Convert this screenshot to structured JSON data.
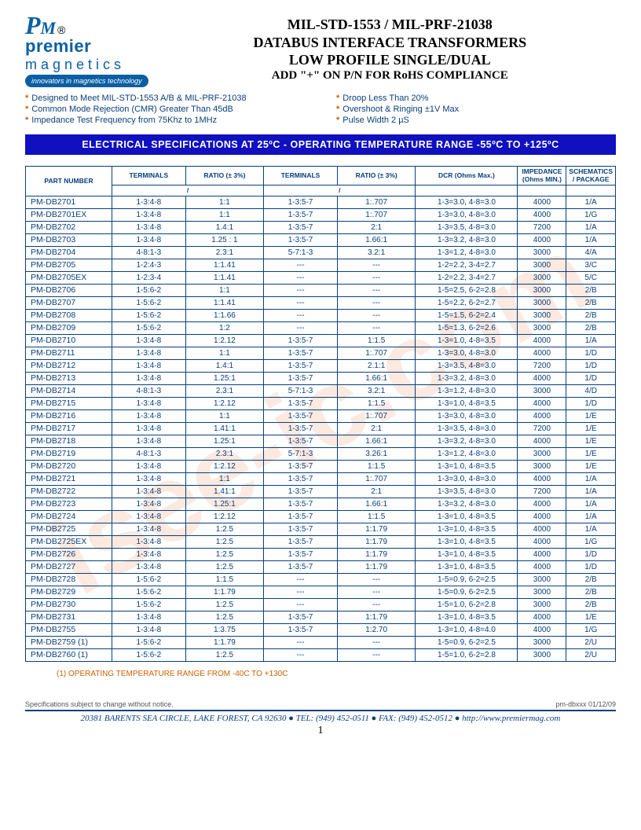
{
  "logo": {
    "premier": "premier",
    "magnetics": "magnetics",
    "tagline": "innovators in magnetics technology",
    "reg": "®"
  },
  "title": {
    "t1": "MIL-STD-1553 / MIL-PRF-21038",
    "t2": "DATABUS INTERFACE TRANSFORMERS",
    "t3": "LOW PROFILE SINGLE/DUAL",
    "t4": "ADD \"+\" ON P/N FOR RoHS COMPLIANCE"
  },
  "bullets_left": [
    "Designed to Meet MIL-STD-1553 A/B & MIL-PRF-21038",
    "Common Mode Rejection (CMR) Greater Than 45dB",
    "Impedance Test Frequency from 75Khz to 1MHz"
  ],
  "bullets_right": [
    "Droop Less Than 20%",
    "Overshoot & Ringing  ±1V Max",
    "Pulse Width 2 µS"
  ],
  "banner": "ELECTRICAL  SPECIFICATIONS  AT  25ºC  -  OPERATING  TEMPERATURE  RANGE   -55ºC  TO  +125ºC",
  "headers": {
    "pn": "PART NUMBER",
    "term": "TERMINALS",
    "ratio": "RATIO (± 3%)",
    "dcr": "DCR (Ohms Max.)",
    "imp": "IMPEDANCE (Ohms MIN.)",
    "schem": "SCHEMATICS / PACKAGE"
  },
  "rows": [
    [
      "PM-DB2701",
      "1-3:4-8",
      "1:1",
      "1-3:5-7",
      "1:.707",
      "1-3=3.0, 4-8=3.0",
      "4000",
      "1/A"
    ],
    [
      "PM-DB2701EX",
      "1-3:4-8",
      "1:1",
      "1-3:5-7",
      "1:.707",
      "1-3=3.0, 4-8=3.0",
      "4000",
      "1/G"
    ],
    [
      "PM-DB2702",
      "1-3:4-8",
      "1.4:1",
      "1-3:5-7",
      "2:1",
      "1-3=3.5, 4-8=3.0",
      "7200",
      "1/A"
    ],
    [
      "PM-DB2703",
      "1-3:4-8",
      "1.25 : 1",
      "1-3:5-7",
      "1.66:1",
      "1-3=3.2, 4-8=3.0",
      "4000",
      "1/A"
    ],
    [
      "PM-DB2704",
      "4-8:1-3",
      "2.3:1",
      "5-7:1-3",
      "3.2:1",
      "1-3=1.2, 4-8=3.0",
      "3000",
      "4/A"
    ],
    [
      "PM-DB2705",
      "1-2:4-3",
      "1:1.41",
      "---",
      "---",
      "1-2=2.2, 3-4=2.7",
      "3000",
      "3/C"
    ],
    [
      "PM-DB2705EX",
      "1-2:3-4",
      "1:1.41",
      "---",
      "---",
      "1-2=2.2, 3-4=2.7",
      "3000",
      "5/C"
    ],
    [
      "PM-DB2706",
      "1-5:6-2",
      "1:1",
      "---",
      "---",
      "1-5=2.5, 6-2=2.8",
      "3000",
      "2/B"
    ],
    [
      "PM-DB2707",
      "1-5:6-2",
      "1:1.41",
      "---",
      "---",
      "1-5=2.2, 6-2=2.7",
      "3000",
      "2/B"
    ],
    [
      "PM-DB2708",
      "1-5:6-2",
      "1:1.66",
      "---",
      "---",
      "1-5=1.5, 6-2=2.4",
      "3000",
      "2/B"
    ],
    [
      "PM-DB2709",
      "1-5:6-2",
      "1:2",
      "---",
      "---",
      "1-5=1.3, 6-2=2.6",
      "3000",
      "2/B"
    ],
    [
      "PM-DB2710",
      "1-3:4-8",
      "1:2.12",
      "1-3:5-7",
      "1:1.5",
      "1-3=1.0, 4-8=3.5",
      "4000",
      "1/A"
    ],
    [
      "PM-DB2711",
      "1-3:4-8",
      "1:1",
      "1-3:5-7",
      "1:.707",
      "1-3=3.0, 4-8=3.0",
      "4000",
      "1/D"
    ],
    [
      "PM-DB2712",
      "1-3:4-8",
      "1.4:1",
      "1-3:5-7",
      "2.1:1",
      "1-3=3.5, 4-8=3.0",
      "7200",
      "1/D"
    ],
    [
      "PM-DB2713",
      "1-3:4-8",
      "1.25:1",
      "1-3:5-7",
      "1.66:1",
      "1-3=3.2, 4-8=3.0",
      "4000",
      "1/D"
    ],
    [
      "PM-DB2714",
      "4-8:1-3",
      "2.3:1",
      "5-7:1-3",
      "3.2:1",
      "1-3=1.2, 4-8=3.0",
      "3000",
      "4/D"
    ],
    [
      "PM-DB2715",
      "1-3:4-8",
      "1:2.12",
      "1-3:5-7",
      "1:1.5",
      "1-3=1.0, 4-8=3.5",
      "4000",
      "1/D"
    ],
    [
      "PM-DB2716",
      "1-3:4-8",
      "1:1",
      "1-3:5-7",
      "1:.707",
      "1-3=3.0, 4-8=3.0",
      "4000",
      "1/E"
    ],
    [
      "PM-DB2717",
      "1-3:4-8",
      "1.41:1",
      "1-3:5-7",
      "2:1",
      "1-3=3.5, 4-8=3.0",
      "7200",
      "1/E"
    ],
    [
      "PM-DB2718",
      "1-3:4-8",
      "1.25:1",
      "1-3:5-7",
      "1.66:1",
      "1-3=3.2, 4-8=3.0",
      "4000",
      "1/E"
    ],
    [
      "PM-DB2719",
      "4-8:1-3",
      "2.3:1",
      "5-7:1-3",
      "3.26:1",
      "1-3=1.2, 4-8=3.0",
      "3000",
      "1/E"
    ],
    [
      "PM-DB2720",
      "1-3:4-8",
      "1:2.12",
      "1-3:5-7",
      "1:1.5",
      "1-3=1.0, 4-8=3.5",
      "3000",
      "1/E"
    ],
    [
      "PM-DB2721",
      "1-3:4-8",
      "1:1",
      "1-3:5-7",
      "1:.707",
      "1-3=3.0, 4-8=3.0",
      "4000",
      "1/A"
    ],
    [
      "PM-DB2722",
      "1-3:4-8",
      "1.41:1",
      "1-3:5-7",
      "2:1",
      "1-3=3.5, 4-8=3.0",
      "7200",
      "1/A"
    ],
    [
      "PM-DB2723",
      "1-3:4-8",
      "1.25:1",
      "1-3:5-7",
      "1.66:1",
      "1-3=3.2, 4-8=3.0",
      "4000",
      "1/A"
    ],
    [
      "PM-DB2724",
      "1-3:4-8",
      "1:2.12",
      "1-3:5-7",
      "1:1.5",
      "1-3=1.0, 4-8=3.5",
      "4000",
      "1/A"
    ],
    [
      "PM-DB2725",
      "1-3:4-8",
      "1:2.5",
      "1-3:5-7",
      "1:1.79",
      "1-3=1.0, 4-8=3.5",
      "4000",
      "1/A"
    ],
    [
      "PM-DB2725EX",
      "1-3:4-8",
      "1:2.5",
      "1-3:5-7",
      "1:1.79",
      "1-3=1.0, 4-8=3.5",
      "4000",
      "1/G"
    ],
    [
      "PM-DB2726",
      "1-3:4-8",
      "1:2.5",
      "1-3:5-7",
      "1:1.79",
      "1-3=1.0, 4-8=3.5",
      "4000",
      "1/D"
    ],
    [
      "PM-DB2727",
      "1-3:4-8",
      "1:2.5",
      "1-3:5-7",
      "1:1.79",
      "1-3=1.0, 4-8=3.5",
      "4000",
      "1/D"
    ],
    [
      "PM-DB2728",
      "1-5:6-2",
      "1:1.5",
      "---",
      "---",
      "1-5=0.9, 6-2=2.5",
      "3000",
      "2/B"
    ],
    [
      "PM-DB2729",
      "1-5:6-2",
      "1:1.79",
      "---",
      "---",
      "1-5=0.9, 6-2=2.5",
      "3000",
      "2/B"
    ],
    [
      "PM-DB2730",
      "1-5:6-2",
      "1:2.5",
      "---",
      "---",
      "1-5=1.0, 6-2=2.8",
      "3000",
      "2/B"
    ],
    [
      "PM-DB2731",
      "1-3:4-8",
      "1:2.5",
      "1-3:5-7",
      "1:1.79",
      "1-3=1.0, 4-8=3.5",
      "4000",
      "1/E"
    ],
    [
      "PM-DB2755",
      "1-3:4-8",
      "1:3.75",
      "1-3:5-7",
      "1:2.70",
      "1-3=1.0, 4-8=4.0",
      "4000",
      "1/G"
    ],
    [
      "PM-DB2759 (1)",
      "1-5:6-2",
      "1:1.79",
      "---",
      "---",
      "1-5=0.9, 6-2=2.5",
      "3000",
      "2/U"
    ],
    [
      "PM-DB2760 (1)",
      "1-5:6-2",
      "1:2.5",
      "---",
      "---",
      "1-5=1.0, 6-2=2.8",
      "3000",
      "2/U"
    ]
  ],
  "note": "(1) OPERATING TEMPERATURE RANGE FROM -40C TO +130C",
  "footer_left": "Specifications subject to change without notice.",
  "footer_right": "pm-dbxxx 01/12/09",
  "address": "20381 BARENTS SEA CIRCLE, LAKE FOREST, CA 92630 ● TEL: (949) 452-0511 ● FAX: (949) 452-0512 ● http://www.premiermag.com",
  "page": "1",
  "watermark": "isee-ic.com"
}
